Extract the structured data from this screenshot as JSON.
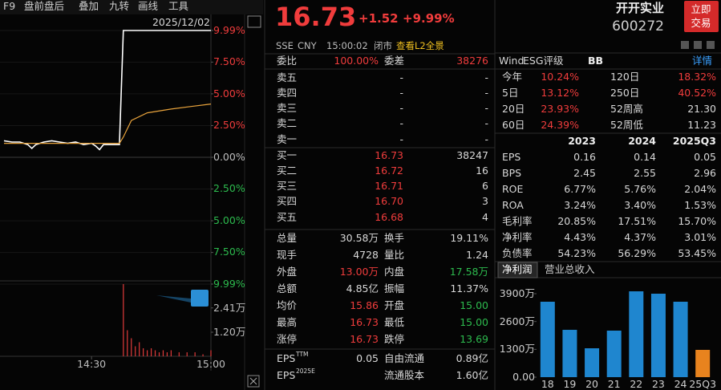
{
  "toolbar": [
    "F9",
    "盘前盘后",
    "叠加",
    "九转",
    "画线",
    "工具"
  ],
  "quote": {
    "price": "16.73",
    "change": "+1.52",
    "pct": "+9.99%",
    "exchange": "SSE",
    "currency": "CNY",
    "time": "15:00:02",
    "status": "闭市",
    "l2_link": "查看L2全景"
  },
  "stock": {
    "name": "开开实业",
    "code": "600272",
    "trade_button": [
      "立即",
      "交易"
    ]
  },
  "order_book": {
    "ratio_label": "委比",
    "ratio": "100.00%",
    "diff_label": "委差",
    "diff": "38276",
    "asks": [
      [
        "卖五",
        "-",
        "-"
      ],
      [
        "卖四",
        "-",
        "-"
      ],
      [
        "卖三",
        "-",
        "-"
      ],
      [
        "卖二",
        "-",
        "-"
      ],
      [
        "卖一",
        "-",
        "-"
      ]
    ],
    "bids": [
      [
        "买一",
        "16.73",
        "38247"
      ],
      [
        "买二",
        "16.72",
        "16"
      ],
      [
        "买三",
        "16.71",
        "6"
      ],
      [
        "买四",
        "16.70",
        "3"
      ],
      [
        "买五",
        "16.68",
        "4"
      ]
    ]
  },
  "stats": [
    {
      "cells": [
        "总量",
        "30.58万",
        "换手",
        "19.11%"
      ],
      "colors": [
        "#d8d8d8",
        "#d8d8d8"
      ]
    },
    {
      "cells": [
        "现手",
        "4728",
        "量比",
        "1.24"
      ],
      "colors": [
        "#d8d8d8",
        "#d8d8d8"
      ]
    },
    {
      "cells": [
        "外盘",
        "13.00万",
        "内盘",
        "17.58万"
      ],
      "colors": [
        "#f03c3c",
        "#2dbb4e"
      ]
    },
    {
      "cells": [
        "总额",
        "4.85亿",
        "振幅",
        "11.37%"
      ],
      "colors": [
        "#d8d8d8",
        "#d8d8d8"
      ]
    },
    {
      "cells": [
        "均价",
        "15.86",
        "开盘",
        "15.00"
      ],
      "colors": [
        "#f03c3c",
        "#2dbb4e"
      ]
    },
    {
      "cells": [
        "最高",
        "16.73",
        "最低",
        "15.00"
      ],
      "colors": [
        "#f03c3c",
        "#2dbb4e"
      ]
    },
    {
      "cells": [
        "涨停",
        "16.73",
        "跌停",
        "13.69"
      ],
      "colors": [
        "#f03c3c",
        "#2dbb4e"
      ]
    }
  ],
  "eps_rows": [
    {
      "label": "EPS",
      "sup": "TTM",
      "value": "0.05",
      "label2": "自由流通",
      "value2": "0.89亿"
    },
    {
      "label": "EPS",
      "sup": "2025E",
      "label2": "流通股本",
      "value2": "1.60亿"
    }
  ],
  "esg": {
    "source": "Wind",
    "label": "ESG评级",
    "rating": "BB",
    "link": "详情"
  },
  "returns": [
    {
      "cells": [
        "今年",
        "10.24%",
        "120日",
        "18.32%"
      ],
      "colors": [
        "#f03c3c",
        "#f03c3c"
      ]
    },
    {
      "cells": [
        "5日",
        "13.12%",
        "250日",
        "40.52%"
      ],
      "colors": [
        "#f03c3c",
        "#f03c3c"
      ]
    },
    {
      "cells": [
        "20日",
        "23.93%",
        "52周高",
        "21.30"
      ],
      "colors": [
        "#f03c3c",
        "#d8d8d8"
      ]
    },
    {
      "cells": [
        "60日",
        "24.39%",
        "52周低",
        "11.23"
      ],
      "colors": [
        "#f03c3c",
        "#d8d8d8"
      ]
    }
  ],
  "financials": {
    "columns": [
      "2023",
      "2024",
      "2025Q3"
    ],
    "rows": [
      [
        "EPS",
        "0.16",
        "0.14",
        "0.05"
      ],
      [
        "BPS",
        "2.45",
        "2.55",
        "2.96"
      ],
      [
        "ROE",
        "6.77%",
        "5.76%",
        "2.04%"
      ],
      [
        "ROA",
        "3.24%",
        "3.40%",
        "1.53%"
      ],
      [
        "毛利率",
        "20.85%",
        "17.51%",
        "15.70%"
      ],
      [
        "净利率",
        "4.43%",
        "4.37%",
        "3.01%"
      ],
      [
        "负债率",
        "54.23%",
        "56.29%",
        "53.45%"
      ]
    ]
  },
  "profit_tabs": [
    "净利润",
    "营业总收入"
  ],
  "chart_data": [
    {
      "type": "line",
      "date": "2025/12/02",
      "x": [
        "14:08",
        "14:10",
        "14:12",
        "14:14",
        "14:15",
        "14:16",
        "14:18",
        "14:20",
        "14:22",
        "14:24",
        "14:26",
        "14:28",
        "14:30",
        "14:31",
        "14:32",
        "14:33",
        "14:35",
        "14:37",
        "14:38",
        "14:40",
        "14:44",
        "14:50",
        "14:55",
        "15:00"
      ],
      "series": [
        {
          "color": "#ffffff",
          "values": [
            1.3,
            1.2,
            1.2,
            1.0,
            0.7,
            1.0,
            1.2,
            1.3,
            1.2,
            1.1,
            1.2,
            1.0,
            1.1,
            0.9,
            0.6,
            1.0,
            1.0,
            1.0,
            9.99,
            9.99,
            9.99,
            9.99,
            9.99,
            9.99
          ]
        },
        {
          "color": "#e8a33c",
          "values": [
            1.1,
            1.1,
            1.1,
            1.1,
            1.1,
            1.1,
            1.1,
            1.1,
            1.1,
            1.1,
            1.1,
            1.1,
            1.1,
            1.1,
            1.1,
            1.1,
            1.1,
            1.1,
            1.6,
            2.9,
            3.5,
            3.8,
            4.0,
            4.2
          ]
        }
      ],
      "xlim": [
        "14:07",
        "15:00"
      ],
      "xticks": [
        "14:30",
        "15:00"
      ],
      "ylim": [
        -9.99,
        9.99
      ],
      "yticks": [
        {
          "value": 9.99,
          "label": "9.99%"
        },
        {
          "value": 7.5,
          "label": "7.50%"
        },
        {
          "value": 5,
          "label": "5.00%"
        },
        {
          "value": 2.5,
          "label": "2.50%"
        },
        {
          "value": 0,
          "label": "0.00%"
        },
        {
          "value": -2.5,
          "label": "2.50%"
        },
        {
          "value": -5,
          "label": "5.00%"
        },
        {
          "value": -7.5,
          "label": "7.50%"
        },
        {
          "value": -9.99,
          "label": "9.99%"
        }
      ],
      "grid": true
    },
    {
      "type": "bar",
      "color": "#e03a3a",
      "x": [
        "14:38",
        "14:39",
        "14:40",
        "14:41",
        "14:42",
        "14:43",
        "14:44",
        "14:45",
        "14:46",
        "14:47",
        "14:48",
        "14:49",
        "14:50",
        "14:52",
        "14:54",
        "14:56",
        "14:58",
        "15:00"
      ],
      "values": [
        3.6,
        1.3,
        0.9,
        0.5,
        0.7,
        0.4,
        0.3,
        0.4,
        0.3,
        0.2,
        0.3,
        0.2,
        0.3,
        0.2,
        0.2,
        0.2,
        0.1,
        0.3
      ],
      "xlim": [
        "14:07",
        "15:00"
      ],
      "ylim": [
        0,
        3.6
      ],
      "yticks": [
        {
          "value": 2.41,
          "label": "2.41万"
        },
        {
          "value": 1.2,
          "label": "1.20万"
        }
      ]
    },
    {
      "type": "bar",
      "categories": [
        "18",
        "19",
        "20",
        "21",
        "22",
        "23",
        "24",
        "25Q3"
      ],
      "values": [
        3525,
        2212,
        1350,
        2175,
        4012,
        3900,
        3525,
        1275
      ],
      "colors": [
        "#1f86cf",
        "#1f86cf",
        "#1f86cf",
        "#1f86cf",
        "#1f86cf",
        "#1f86cf",
        "#1f86cf",
        "#e8831e"
      ],
      "ylim": [
        0,
        4200
      ],
      "yticks": [
        {
          "value": 0,
          "label": "0.00"
        },
        {
          "value": 1300,
          "label": "1300万"
        },
        {
          "value": 2600,
          "label": "2600万"
        },
        {
          "value": 3900,
          "label": "3900万"
        }
      ]
    }
  ]
}
